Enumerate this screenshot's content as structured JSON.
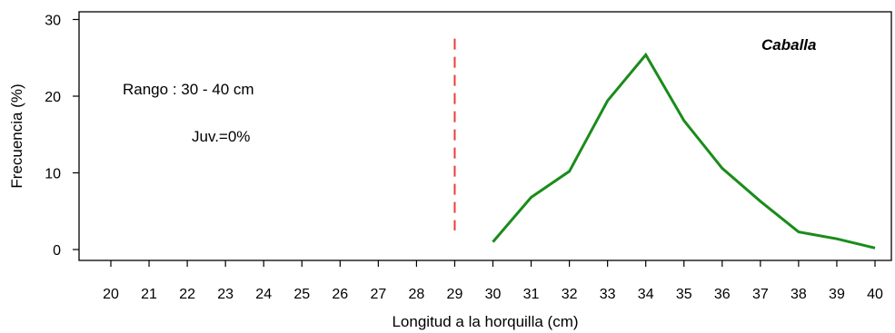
{
  "chart_data": {
    "type": "line",
    "xlabel": "Longitud a la horquilla (cm)",
    "ylabel": "Frecuencia (%)",
    "xlim": [
      20,
      40
    ],
    "ylim": [
      0,
      30
    ],
    "x_ticks": [
      "20",
      "21",
      "22",
      "23",
      "24",
      "25",
      "26",
      "27",
      "28",
      "29",
      "30",
      "31",
      "32",
      "33",
      "34",
      "35",
      "36",
      "37",
      "38",
      "39",
      "40"
    ],
    "y_ticks": [
      "0",
      "10",
      "20",
      "30"
    ],
    "series": [
      {
        "color": "#1a8c1a",
        "x": [
          30,
          31,
          32,
          33,
          34,
          35,
          36,
          37,
          38,
          39,
          40
        ],
        "y": [
          1.0,
          6.8,
          10.2,
          19.4,
          25.4,
          16.8,
          10.6,
          6.3,
          2.3,
          1.4,
          0.2
        ]
      }
    ],
    "reference_line": {
      "x": 29,
      "y_range": [
        2.5,
        27.5
      ],
      "color": "#e83c3c",
      "style": "dashed"
    },
    "annotations": {
      "range": "Rango : 30 - 40 cm",
      "juveniles": "Juv.=0%",
      "species": "Caballa"
    },
    "grid": false,
    "legend": "none"
  }
}
